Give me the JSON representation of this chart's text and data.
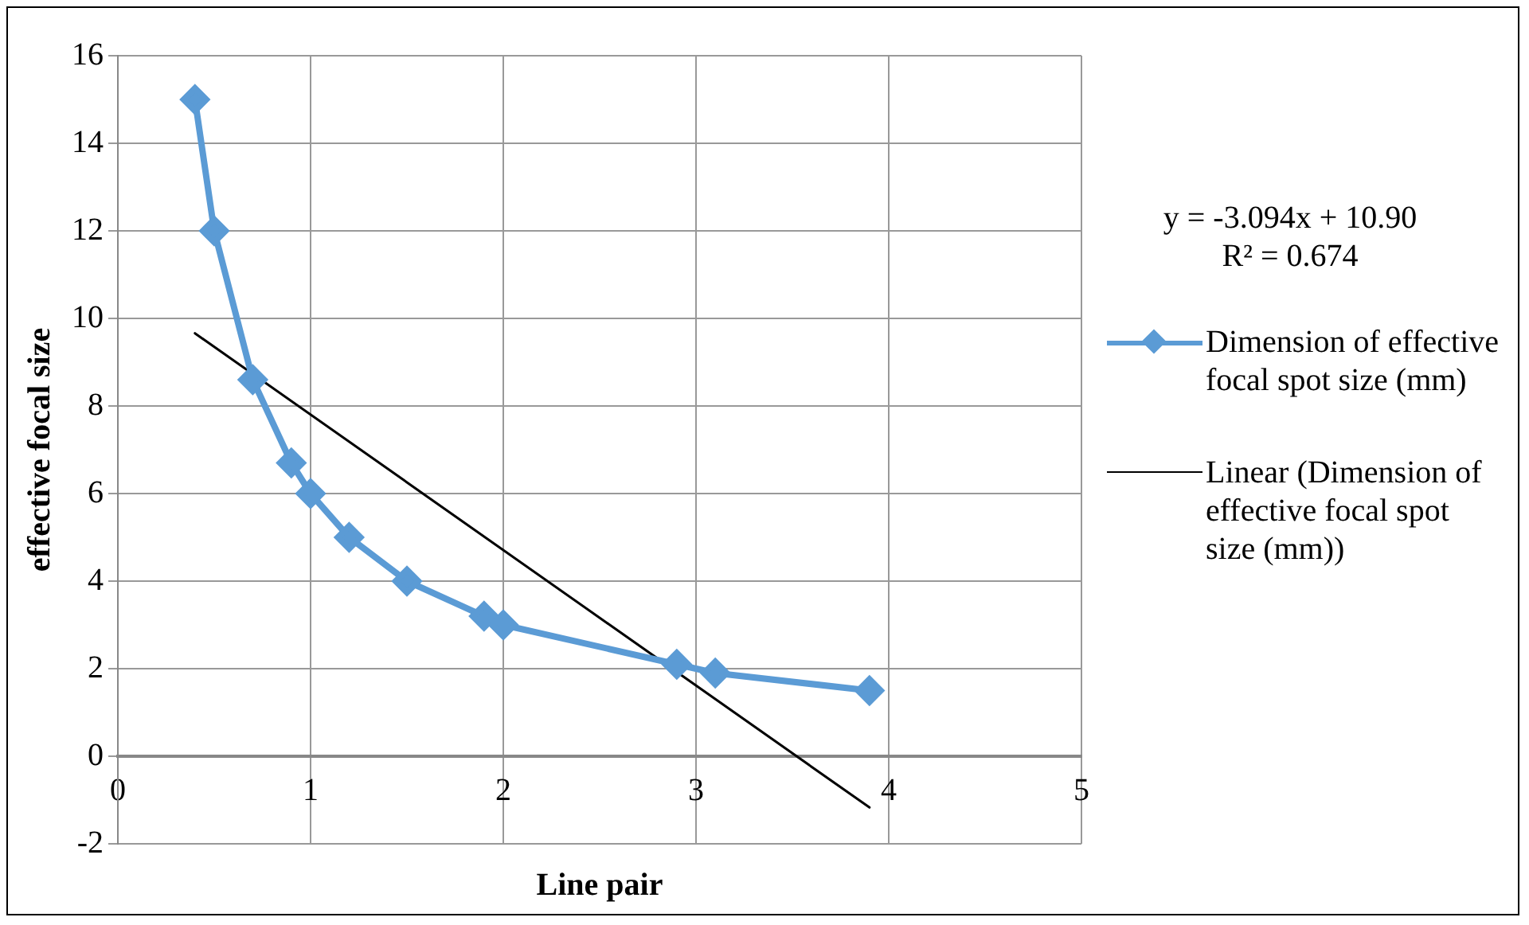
{
  "chart_data": {
    "type": "line",
    "xlabel": "Line pair",
    "ylabel": "effective focal size",
    "xlim": [
      0,
      5
    ],
    "xticks": [
      0,
      1,
      2,
      3,
      4,
      5
    ],
    "ylim": [
      -2,
      16
    ],
    "yticks": [
      -2,
      0,
      2,
      4,
      6,
      8,
      10,
      12,
      14,
      16
    ],
    "grid": true,
    "legend": "right",
    "marker": "diamond",
    "line_style": "solid",
    "annotations": [
      "y = -3.094x + 10.90",
      "R² = 0.674"
    ],
    "series": [
      {
        "name": "Dimension of effective focal spot size (mm)",
        "color": "#5b9bd5",
        "x": [
          0.4,
          0.5,
          0.7,
          0.9,
          1,
          1.2,
          1.5,
          1.9,
          2,
          2.9,
          3.1,
          3.9
        ],
        "values": [
          15,
          12,
          8.6,
          6.7,
          6,
          5,
          4,
          3.2,
          3,
          2.1,
          1.9,
          1.5
        ]
      },
      {
        "name": "Linear (Dimension of effective focal spot size (mm))",
        "color": "#000000",
        "marker": "none",
        "x": [
          0.4,
          3.9
        ],
        "values": [
          9.66,
          -1.17
        ]
      }
    ]
  }
}
